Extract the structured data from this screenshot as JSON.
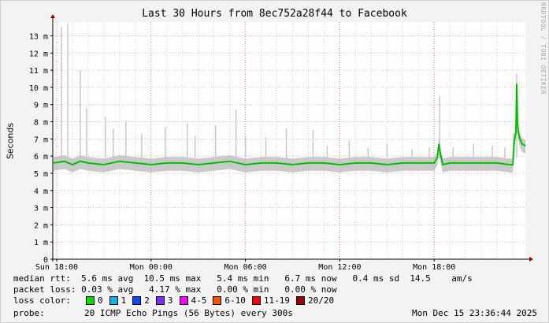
{
  "chart_data": {
    "type": "line",
    "title": "Last 30 Hours from 8ec752a28f44 to Facebook",
    "ylabel": "Seconds",
    "xlabel": "",
    "ylim": [
      0,
      13.8
    ],
    "y_unit_suffix": "m",
    "y_ticks": [
      0,
      1,
      2,
      3,
      4,
      5,
      6,
      7,
      8,
      9,
      10,
      11,
      12,
      13
    ],
    "x_ticks": [
      {
        "hour": 0,
        "label": "Sun 18:00"
      },
      {
        "hour": 6,
        "label": "Mon 00:00"
      },
      {
        "hour": 12,
        "label": "Mon 06:00"
      },
      {
        "hour": 18,
        "label": "Mon 12:00"
      },
      {
        "hour": 24,
        "label": "Mon 18:00"
      }
    ],
    "x_range_hours": [
      -0.25,
      29.8
    ],
    "grid": true,
    "series": [
      {
        "color": "#00cc00",
        "x": [
          -0.2,
          0.5,
          1.0,
          1.5,
          2.0,
          3.0,
          4.0,
          5.0,
          6.0,
          7.0,
          8.0,
          9.0,
          10.0,
          11.0,
          12.0,
          13.0,
          14.0,
          15.0,
          16.0,
          17.0,
          18.0,
          19.0,
          20.0,
          21.0,
          22.0,
          23.0,
          24.0,
          24.2,
          24.3,
          24.4,
          24.55,
          25.0,
          26.0,
          27.0,
          28.0,
          28.8,
          29.0,
          29.1,
          29.2,
          29.25,
          29.3,
          29.35,
          29.45,
          29.6,
          29.8
        ],
        "values": [
          5.6,
          5.7,
          5.5,
          5.7,
          5.6,
          5.5,
          5.7,
          5.6,
          5.5,
          5.6,
          5.6,
          5.5,
          5.6,
          5.7,
          5.5,
          5.6,
          5.6,
          5.5,
          5.6,
          5.6,
          5.5,
          5.6,
          5.6,
          5.5,
          5.6,
          5.6,
          5.6,
          5.9,
          6.7,
          6.1,
          5.5,
          5.6,
          5.6,
          5.6,
          5.6,
          5.5,
          5.5,
          6.9,
          7.4,
          10.2,
          8.0,
          7.4,
          7.0,
          6.7,
          6.6
        ]
      }
    ],
    "spikes": [
      {
        "x": 0.3,
        "y": 13.5
      },
      {
        "x": 0.7,
        "y": 13.7
      },
      {
        "x": 1.5,
        "y": 11.0
      },
      {
        "x": 1.9,
        "y": 8.8
      },
      {
        "x": 3.1,
        "y": 8.3
      },
      {
        "x": 3.6,
        "y": 7.6
      },
      {
        "x": 4.4,
        "y": 8.0
      },
      {
        "x": 5.4,
        "y": 7.3
      },
      {
        "x": 6.9,
        "y": 7.7
      },
      {
        "x": 8.3,
        "y": 7.9
      },
      {
        "x": 8.8,
        "y": 7.2
      },
      {
        "x": 10.1,
        "y": 7.8
      },
      {
        "x": 11.4,
        "y": 8.7
      },
      {
        "x": 12.0,
        "y": 7.2
      },
      {
        "x": 13.3,
        "y": 7.1
      },
      {
        "x": 14.6,
        "y": 7.6
      },
      {
        "x": 16.3,
        "y": 7.5
      },
      {
        "x": 17.2,
        "y": 6.6
      },
      {
        "x": 18.6,
        "y": 6.9
      },
      {
        "x": 19.8,
        "y": 6.5
      },
      {
        "x": 21.0,
        "y": 6.7
      },
      {
        "x": 22.6,
        "y": 6.4
      },
      {
        "x": 23.7,
        "y": 6.5
      },
      {
        "x": 24.35,
        "y": 9.5
      },
      {
        "x": 25.2,
        "y": 6.5
      },
      {
        "x": 26.5,
        "y": 6.7
      },
      {
        "x": 27.7,
        "y": 6.6
      },
      {
        "x": 28.5,
        "y": 6.5
      },
      {
        "x": 29.05,
        "y": 7.3
      },
      {
        "x": 29.25,
        "y": 10.8
      }
    ]
  },
  "watermark": "RRDTOOL / TOBI OETIKER",
  "stats": {
    "median_rtt": "median rtt:  5.6 ms avg  10.5 ms max   5.4 ms min   6.7 ms now   0.4 ms sd  14.5    am/s",
    "packet_loss": "packet loss: 0.03 % avg   4.17 % max   0.00 % min   0.00 % now"
  },
  "legend": {
    "label": "loss color:",
    "items": [
      {
        "label": "0",
        "color": "#00e000"
      },
      {
        "label": "1",
        "color": "#00b8f0"
      },
      {
        "label": "2",
        "color": "#0050ff"
      },
      {
        "label": "3",
        "color": "#7d2bff"
      },
      {
        "label": "4-5",
        "color": "#ff00ff"
      },
      {
        "label": "6-10",
        "color": "#ff5000"
      },
      {
        "label": "11-19",
        "color": "#ff0000"
      },
      {
        "label": "20/20",
        "color": "#a00000"
      }
    ]
  },
  "probe": {
    "label": "probe:",
    "text": "20 ICMP Echo Pings (56 Bytes) every 300s",
    "timestamp": "Mon Dec 15 23:36:44 2025"
  }
}
